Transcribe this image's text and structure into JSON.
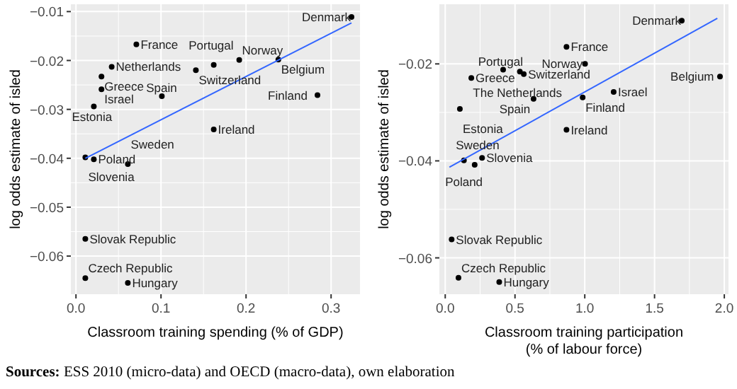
{
  "chart_data": [
    {
      "type": "scatter",
      "xlabel": "Classroom training spending (% of GDP)",
      "ylabel": "log odds estimate of isled",
      "xlim": [
        -0.006,
        0.334
      ],
      "ylim": [
        -0.0678,
        -0.0085
      ],
      "xticks": [
        {
          "value": 0,
          "label": "0.0"
        },
        0.1,
        0.2,
        0.3
      ],
      "yticks": [
        -0.06,
        -0.05,
        -0.04,
        -0.03,
        -0.02,
        -0.01
      ],
      "grid": true,
      "series": [
        {
          "marker": "circle",
          "color": "#000000",
          "x": [
            0.324,
            0.071,
            0.042,
            0.03,
            0.03,
            0.021,
            0.101,
            0.162,
            0.192,
            0.141,
            0.238,
            0.284,
            0.162,
            0.011,
            0.021,
            0.061,
            0.011,
            0.011,
            0.061
          ],
          "values": [
            -0.0111,
            -0.0167,
            -0.0213,
            -0.0233,
            -0.0259,
            -0.0294,
            -0.0273,
            -0.0209,
            -0.0199,
            -0.022,
            -0.0198,
            -0.0271,
            -0.0341,
            -0.0398,
            -0.0402,
            -0.0412,
            -0.0565,
            -0.0645,
            -0.0655
          ]
        },
        {
          "type": "line",
          "color": "#3366ff",
          "x": [
            0.011,
            0.324
          ],
          "values": [
            -0.04,
            -0.0123
          ]
        }
      ],
      "annotations": [
        {
          "text": "Denmark",
          "x": 0.324,
          "y": -0.0111
        },
        {
          "text": "France",
          "x": 0.071,
          "y": -0.0167
        },
        {
          "text": "Netherlands",
          "x": 0.042,
          "y": -0.0213
        },
        {
          "text": "Greece",
          "x": 0.03,
          "y": -0.0233
        },
        {
          "text": "Israel",
          "x": 0.03,
          "y": -0.0259
        },
        {
          "text": "Estonia",
          "x": 0.021,
          "y": -0.0294
        },
        {
          "text": "Spain",
          "x": 0.101,
          "y": -0.0273
        },
        {
          "text": "Portugal",
          "x": 0.162,
          "y": -0.0209
        },
        {
          "text": "Norway",
          "x": 0.192,
          "y": -0.0199
        },
        {
          "text": "Switzerland",
          "x": 0.141,
          "y": -0.022
        },
        {
          "text": "Belgium",
          "x": 0.238,
          "y": -0.0198
        },
        {
          "text": "Finland",
          "x": 0.284,
          "y": -0.0271
        },
        {
          "text": "Ireland",
          "x": 0.162,
          "y": -0.0341
        },
        {
          "text": "Slovenia",
          "x": 0.011,
          "y": -0.0398
        },
        {
          "text": "Poland",
          "x": 0.021,
          "y": -0.0402
        },
        {
          "text": "Sweden",
          "x": 0.061,
          "y": -0.0412
        },
        {
          "text": "Slovak Republic",
          "x": 0.011,
          "y": -0.0565
        },
        {
          "text": "Czech Republic",
          "x": 0.011,
          "y": -0.0645
        },
        {
          "text": "Hungary",
          "x": 0.061,
          "y": -0.0655
        },
        "Sources: ESS 2010 (micro-data) and OECD (macro-data), own elaboration"
      ]
    },
    {
      "type": "scatter",
      "xlabel": "Classroom training participation\n(% of labour force)",
      "ylabel": "log odds estimate of isled",
      "xlim": [
        -0.042,
        2.03
      ],
      "ylim": [
        -0.0675,
        -0.0077
      ],
      "xticks": [
        {
          "value": 0,
          "label": "0.0"
        },
        0.5,
        {
          "value": 1,
          "label": "1.0"
        },
        1.5,
        {
          "value": 2,
          "label": "2.0"
        }
      ],
      "yticks": [
        -0.06,
        -0.04,
        -0.02
      ],
      "grid": true,
      "series": [
        {
          "marker": "circle",
          "color": "#000000",
          "x": [
            1.695,
            0.869,
            0.415,
            0.535,
            0.563,
            1.002,
            0.187,
            1.969,
            1.207,
            0.633,
            0.985,
            0.105,
            0.869,
            0.264,
            0.134,
            0.211,
            0.046,
            0.095,
            0.387
          ],
          "values": [
            -0.0111,
            -0.0165,
            -0.0212,
            -0.0216,
            -0.0221,
            -0.02,
            -0.0229,
            -0.0226,
            -0.0258,
            -0.0272,
            -0.0269,
            -0.0293,
            -0.0336,
            -0.0394,
            -0.0399,
            -0.0408,
            -0.0562,
            -0.0641,
            -0.065
          ]
        },
        {
          "type": "line",
          "color": "#3366ff",
          "x": [
            0.03,
            1.95
          ],
          "values": [
            -0.0413,
            -0.0106
          ]
        }
      ],
      "annotations": [
        {
          "text": "Denmark",
          "x": 1.695,
          "y": -0.0111
        },
        {
          "text": "France",
          "x": 0.869,
          "y": -0.0165
        },
        {
          "text": "Portugal",
          "x": 0.415,
          "y": -0.0212
        },
        {
          "text": "The Netherlands",
          "x": 0.535,
          "y": -0.0216
        },
        {
          "text": "Switzerland",
          "x": 0.563,
          "y": -0.0221
        },
        {
          "text": "Norway",
          "x": 1.002,
          "y": -0.02
        },
        {
          "text": "Greece",
          "x": 0.187,
          "y": -0.0229
        },
        {
          "text": "Belgium",
          "x": 1.969,
          "y": -0.0226
        },
        {
          "text": "Israel",
          "x": 1.207,
          "y": -0.0258
        },
        {
          "text": "Spain",
          "x": 0.633,
          "y": -0.0272
        },
        {
          "text": "Finland",
          "x": 0.985,
          "y": -0.0269
        },
        {
          "text": "Estonia",
          "x": 0.105,
          "y": -0.0293
        },
        {
          "text": "Ireland",
          "x": 0.869,
          "y": -0.0336
        },
        {
          "text": "Slovenia",
          "x": 0.264,
          "y": -0.0394
        },
        {
          "text": "Poland",
          "x": 0.134,
          "y": -0.0399
        },
        {
          "text": "Sweden",
          "x": 0.211,
          "y": -0.0408
        },
        {
          "text": "Slovak Republic",
          "x": 0.046,
          "y": -0.0562
        },
        {
          "text": "Czech Republic",
          "x": 0.095,
          "y": -0.0641
        },
        {
          "text": "Hungary",
          "x": 0.387,
          "y": -0.065
        }
      ]
    }
  ]
}
